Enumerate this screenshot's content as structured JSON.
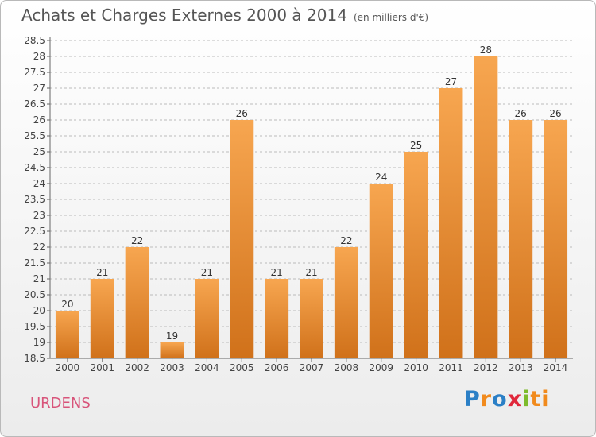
{
  "header": {
    "title": "Achats et Charges Externes 2000 à 2014",
    "subtitle": "(en milliers d'€)"
  },
  "footer": {
    "place": "URDENS",
    "logo": [
      "P",
      "r",
      "o",
      "x",
      "i",
      "ti"
    ]
  },
  "colors": {
    "bar_top": "#f7a650",
    "bar_bottom": "#d0711a",
    "grid": "#bbbbbb",
    "place": "#d8547a"
  },
  "chart_data": {
    "type": "bar",
    "categories": [
      "2000",
      "2001",
      "2002",
      "2003",
      "2004",
      "2005",
      "2006",
      "2007",
      "2008",
      "2009",
      "2010",
      "2011",
      "2012",
      "2013",
      "2014"
    ],
    "values": [
      20,
      21,
      22,
      19,
      21,
      26,
      21,
      21,
      22,
      24,
      25,
      27,
      28,
      26,
      26
    ],
    "ylim": [
      18.5,
      28.5
    ],
    "yticks": [
      "18.5",
      "19",
      "19.5",
      "20",
      "20.5",
      "21",
      "21.5",
      "22",
      "22.5",
      "23",
      "23.5",
      "24",
      "24.5",
      "25",
      "25.5",
      "26",
      "26.5",
      "27",
      "27.5",
      "28",
      "28.5"
    ],
    "grid": true
  }
}
